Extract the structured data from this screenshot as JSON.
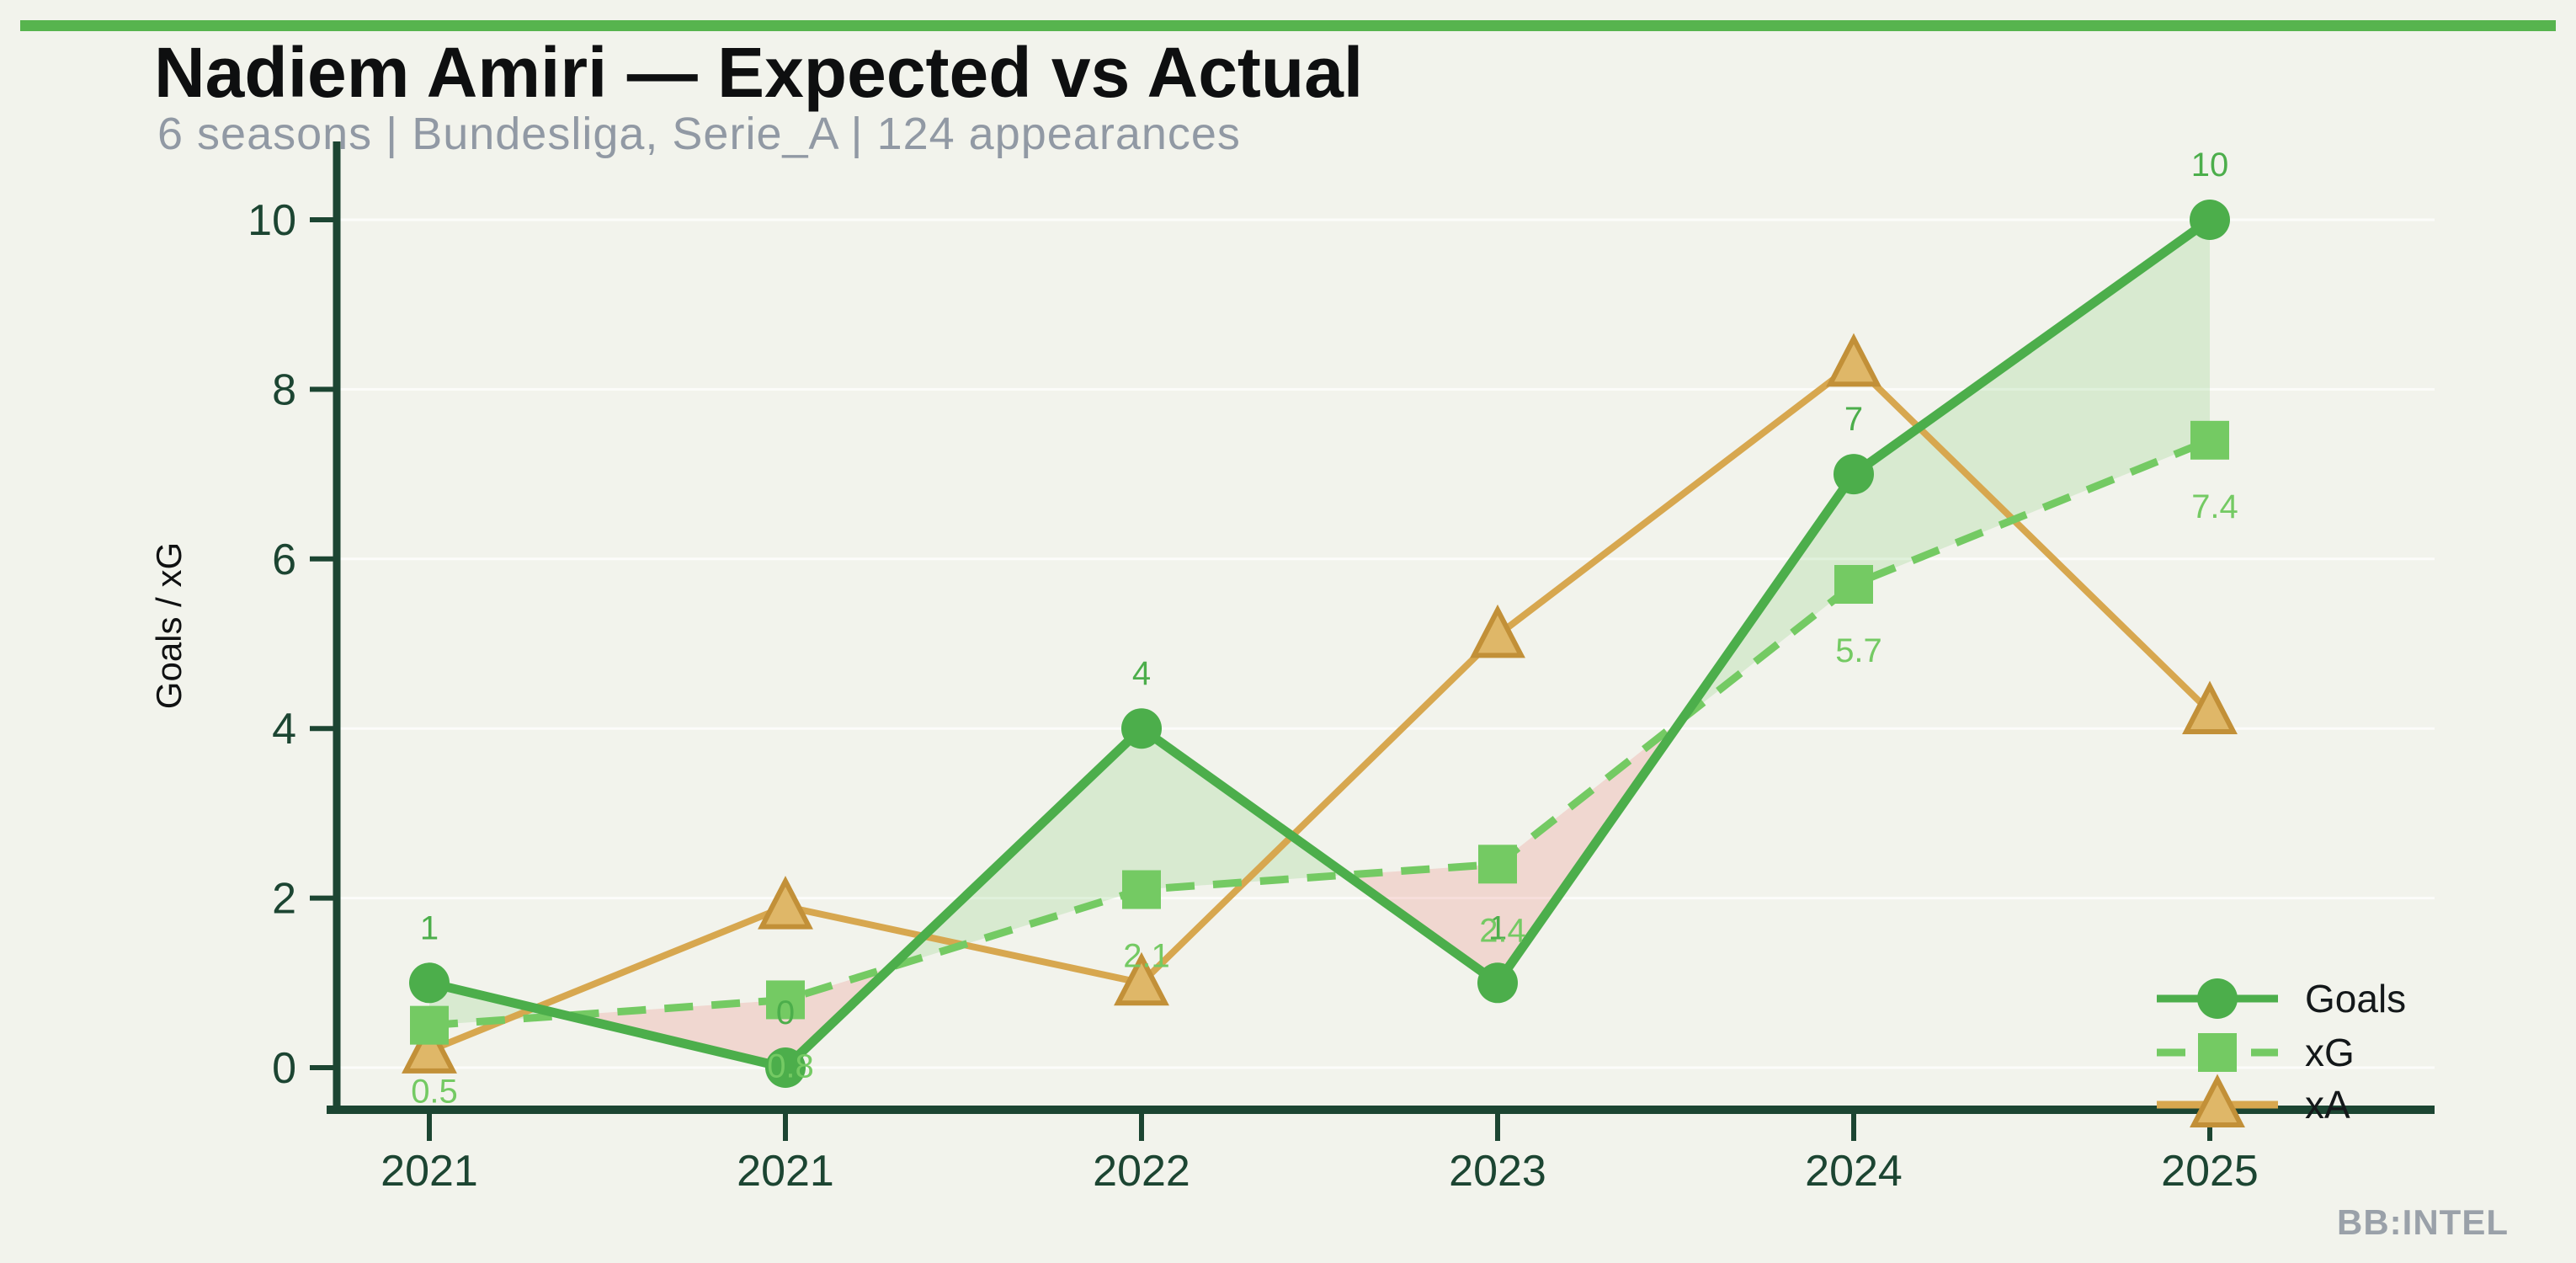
{
  "header": {
    "title": "Nadiem Amiri — Expected vs Actual",
    "subtitle": "6 seasons | Bundesliga, Serie_A | 124 appearances"
  },
  "watermark": "BB:INTEL",
  "colors": {
    "background": "#f2f3ec",
    "accent_bar": "#57b44e",
    "title": "#0e0f10",
    "subtitle": "#9199a4",
    "axis": "#1c4532",
    "goals": "#4cae4b",
    "xg": "#74ca63",
    "xa_line": "#d7a74f",
    "xa_marker_fill": "#dfb768",
    "xa_marker_stroke": "#c29038",
    "fill_over": "rgba(116,202,99,0.20)",
    "fill_under": "rgba(233,119,110,0.22)",
    "gridline": "rgba(255,255,255,0.75)",
    "legend_text": "#14181a",
    "watermark": "#9aa1a9"
  },
  "chart_data": {
    "type": "line",
    "title": "Nadiem Amiri — Expected vs Actual",
    "xlabel": "",
    "ylabel": "Goals / xG",
    "categories": [
      "2021",
      "2021",
      "2022",
      "2023",
      "2024",
      "2025"
    ],
    "yticks": [
      0,
      2,
      4,
      6,
      8,
      10
    ],
    "ylim": [
      0,
      10
    ],
    "grid": "horizontal",
    "legend_position": "lower right",
    "series": [
      {
        "name": "Goals",
        "marker": "circle",
        "line_style": "solid",
        "values": [
          1,
          0,
          4,
          1,
          7,
          10
        ],
        "point_labels": [
          "1",
          "0",
          "4",
          "1",
          "7",
          "10"
        ]
      },
      {
        "name": "xG",
        "marker": "square",
        "line_style": "dashed",
        "values": [
          0.5,
          0.8,
          2.1,
          2.4,
          5.7,
          7.4
        ],
        "point_labels": [
          "0.5",
          "0.8",
          "2.1",
          "2.4",
          "5.7",
          "7.4"
        ]
      },
      {
        "name": "xA",
        "marker": "triangle",
        "line_style": "solid",
        "values": [
          0.2,
          1.9,
          1.0,
          5.1,
          8.3,
          4.2
        ],
        "point_labels": []
      }
    ],
    "fill_between": {
      "upper_series": "Goals",
      "lower_series": "xG",
      "over_meaning": "Goals above xG (green)",
      "under_meaning": "Goals below xG (red)"
    },
    "legend": [
      "Goals",
      "xG",
      "xA"
    ]
  }
}
